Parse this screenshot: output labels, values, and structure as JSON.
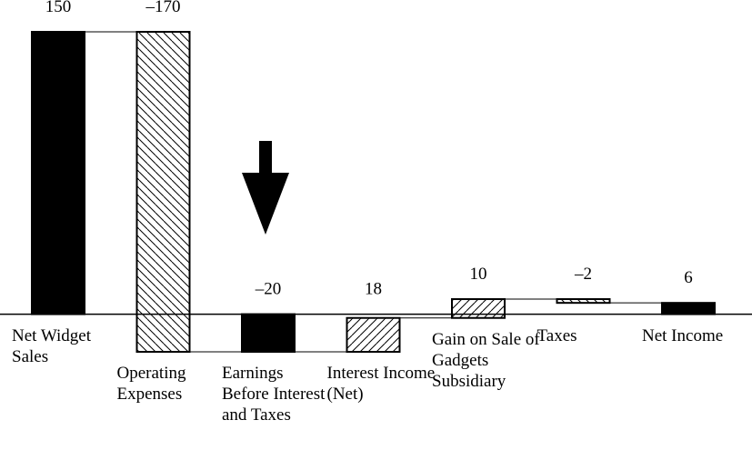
{
  "chart_data": {
    "type": "waterfall",
    "categories": [
      "Net Widget Sales",
      "Operating Expenses",
      "Earnings Before Interest and Taxes",
      "Interest Income (Net)",
      "Gain on Sale of Gadgets Subsidiary",
      "Taxes",
      "Net Income"
    ],
    "kinds": [
      "total",
      "change",
      "total",
      "change",
      "change",
      "change",
      "total"
    ],
    "values": [
      150,
      -170,
      -20,
      18,
      10,
      -2,
      6
    ],
    "value_labels": [
      "150",
      "–170",
      "–20",
      "18",
      "10",
      "–2",
      "6"
    ],
    "color": "#000000"
  }
}
